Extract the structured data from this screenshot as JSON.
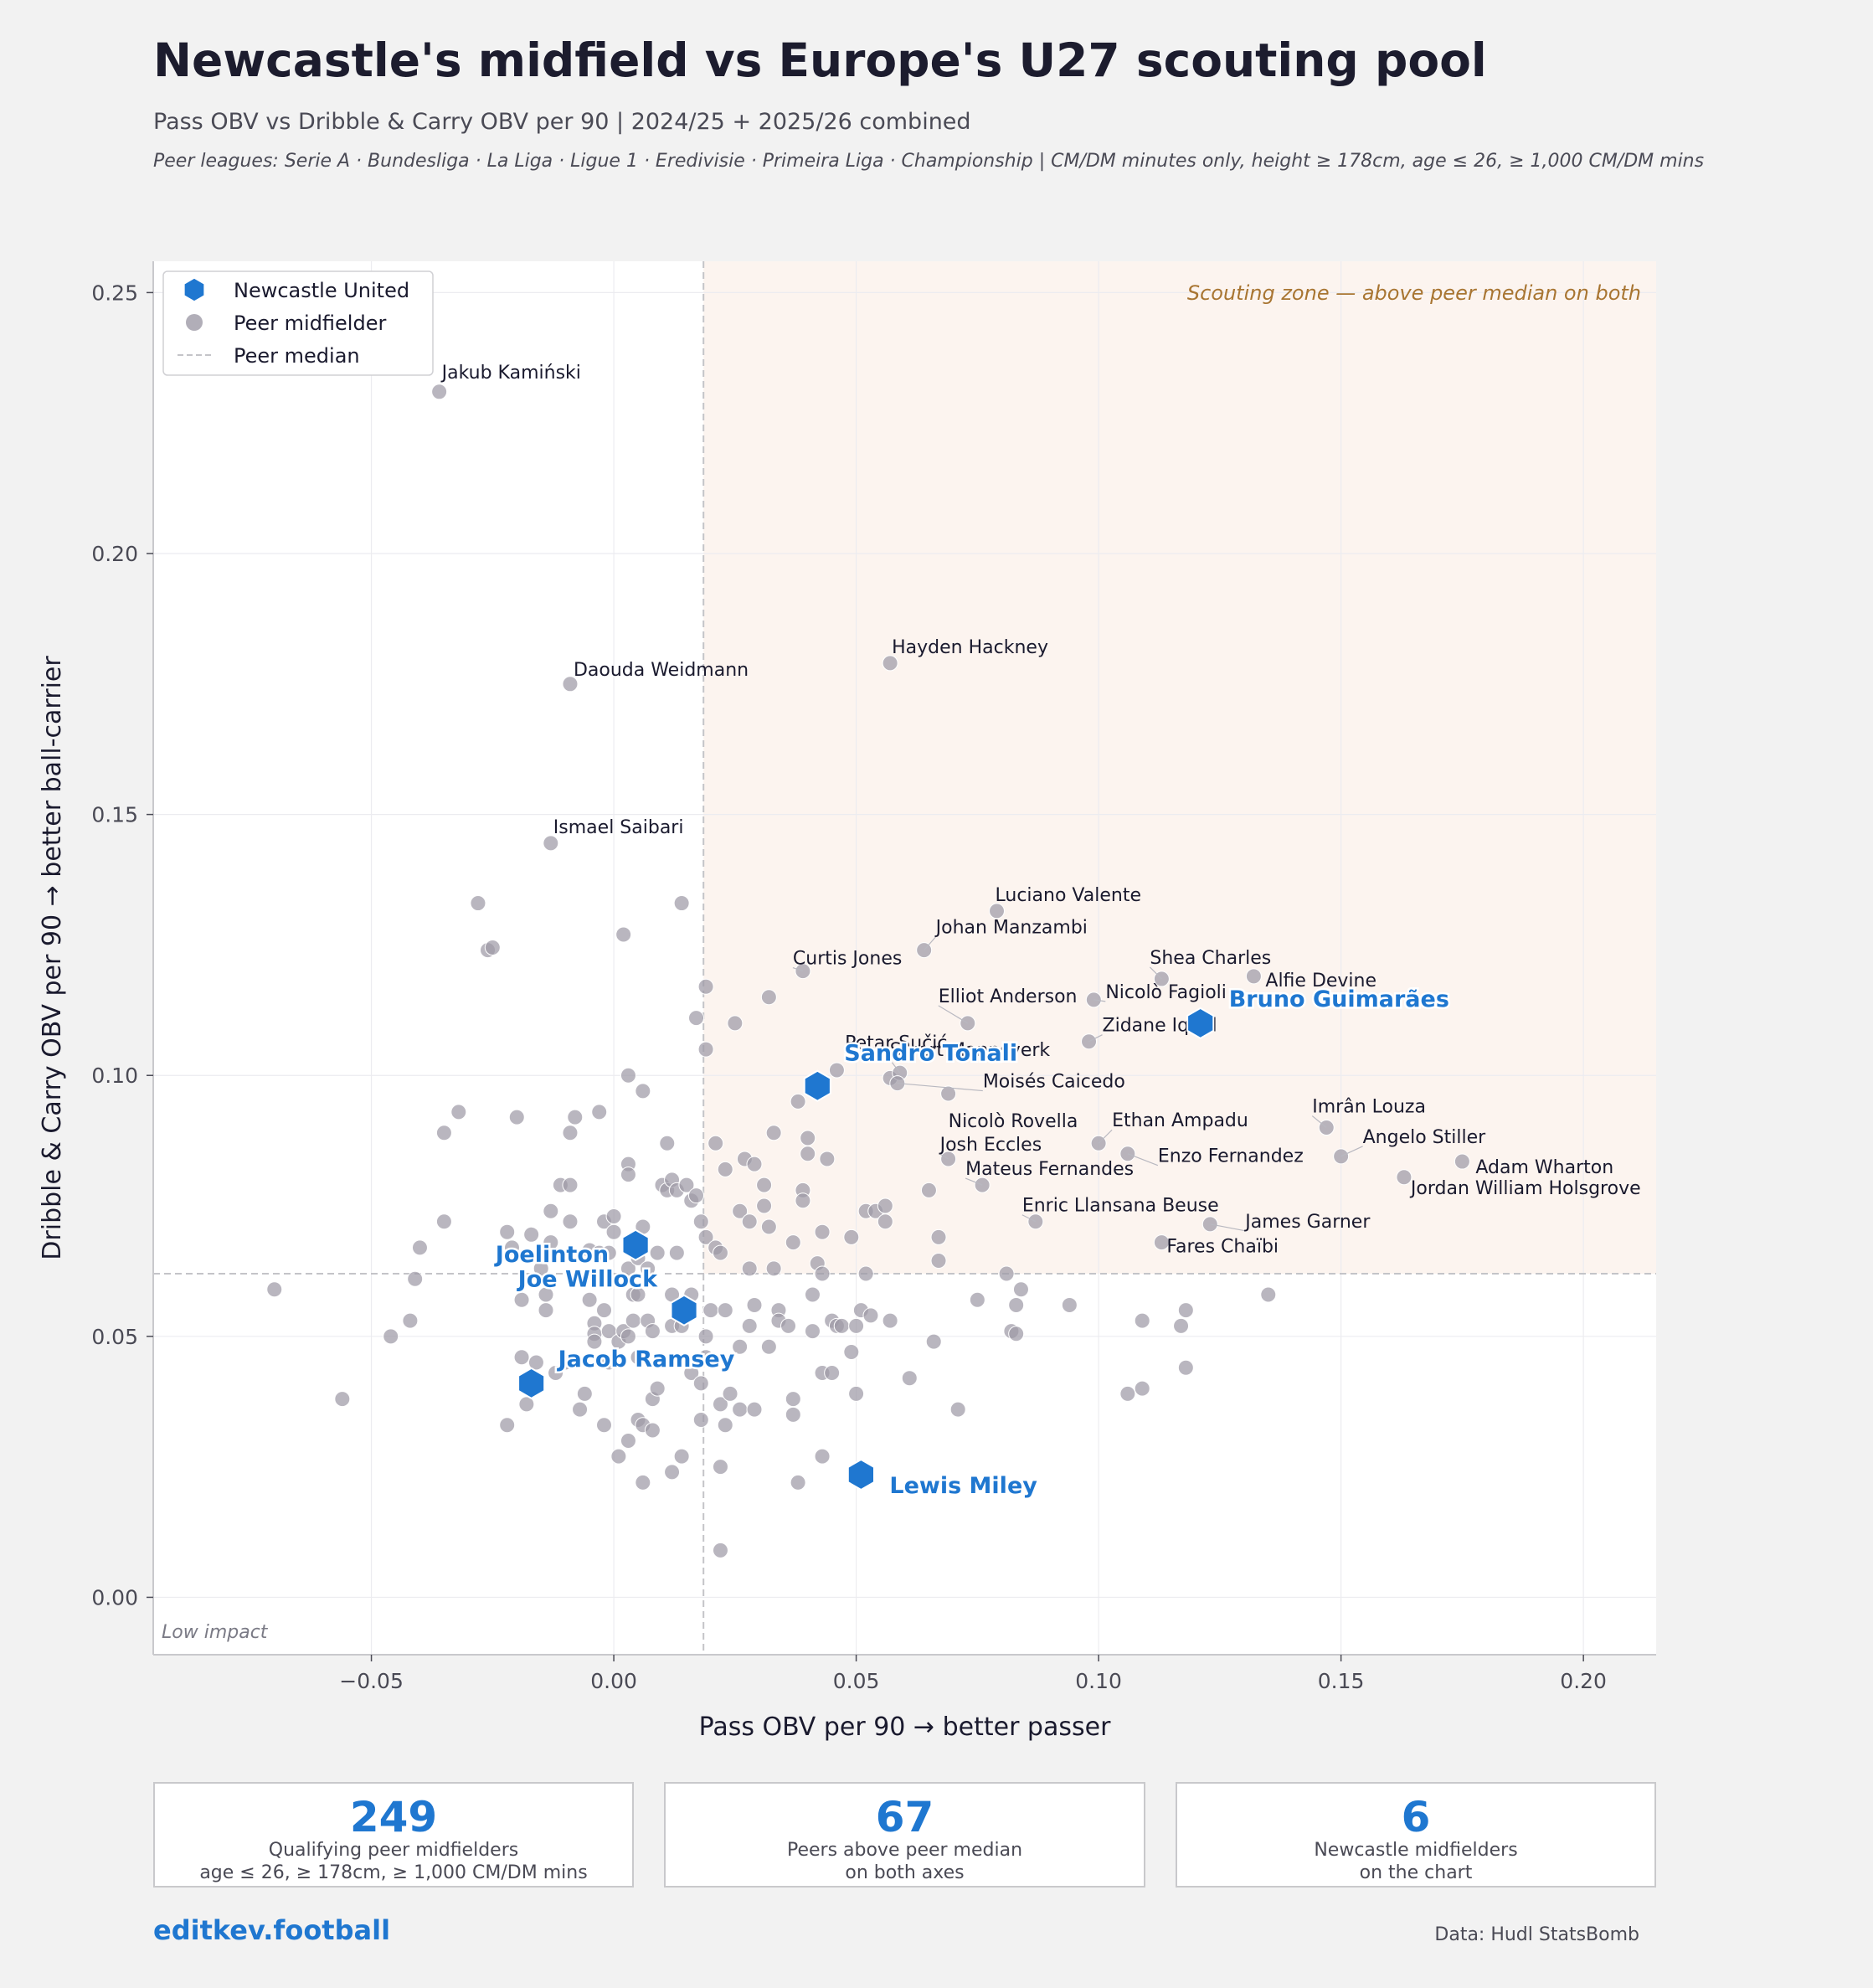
{
  "header": {
    "title": "Newcastle's midfield vs Europe's U27 scouting pool",
    "subtitle": "Pass OBV vs Dribble & Carry OBV per 90 | 2024/25 + 2025/26 combined",
    "note": "Peer leagues: Serie A · Bundesliga · La Liga · Ligue 1 · Eredivisie · Primeira Liga · Championship  |  CM/DM minutes only, height ≥ 178cm, age ≤ 26, ≥ 1,000 CM/DM mins"
  },
  "chart_data": {
    "type": "scatter",
    "xlabel": "Pass OBV per 90  →  better passer",
    "ylabel": "Dribble & Carry OBV per 90  →  better ball-carrier",
    "xlim": [
      -0.095,
      0.215
    ],
    "ylim": [
      -0.011,
      0.256
    ],
    "xticks": [
      -0.05,
      0.0,
      0.05,
      0.1,
      0.15,
      0.2
    ],
    "xtick_labels": [
      "−0.05",
      "0.00",
      "0.05",
      "0.10",
      "0.15",
      "0.20"
    ],
    "yticks": [
      0.0,
      0.05,
      0.1,
      0.15,
      0.2,
      0.25
    ],
    "ytick_labels": [
      "0.00",
      "0.05",
      "0.10",
      "0.15",
      "0.20",
      "0.25"
    ],
    "grid": true,
    "median": {
      "x": 0.0185,
      "y": 0.062
    },
    "legend_position": "top-left",
    "legend": [
      "Newcastle United",
      "Peer midfielder",
      "Peer median"
    ],
    "zone_label": "Scouting zone — above peer median on both",
    "corner_label": "Low impact",
    "colors": {
      "newcastle": "#1f77d0",
      "peer": "#9e9aa6",
      "zone": "#fcf4ef",
      "zone_text": "#a87532"
    },
    "newcastle": [
      {
        "name": "Bruno Guimarães",
        "x": 0.121,
        "y": 0.11
      },
      {
        "name": "Sandro Tonali",
        "x": 0.042,
        "y": 0.098
      },
      {
        "name": "Joelinton",
        "x": 0.0045,
        "y": 0.0675
      },
      {
        "name": "Joe Willock",
        "x": 0.0145,
        "y": 0.055
      },
      {
        "name": "Jacob Ramsey",
        "x": -0.017,
        "y": 0.041
      },
      {
        "name": "Lewis Miley",
        "x": 0.051,
        "y": 0.0235
      }
    ],
    "labeled_peers": [
      {
        "name": "Jakub Kamiński",
        "x": -0.036,
        "y": 0.231
      },
      {
        "name": "Daouda Weidmann",
        "x": -0.009,
        "y": 0.175
      },
      {
        "name": "Hayden Hackney",
        "x": 0.057,
        "y": 0.179
      },
      {
        "name": "Ismael Saibari",
        "x": -0.013,
        "y": 0.1445
      },
      {
        "name": "Luciano Valente",
        "x": 0.079,
        "y": 0.1315
      },
      {
        "name": "Johan Manzambi",
        "x": 0.064,
        "y": 0.124
      },
      {
        "name": "Curtis Jones",
        "x": 0.039,
        "y": 0.12
      },
      {
        "name": "Shea Charles",
        "x": 0.113,
        "y": 0.1185
      },
      {
        "name": "Alfie Devine",
        "x": 0.132,
        "y": 0.119
      },
      {
        "name": "Nicolò Fagioli",
        "x": 0.099,
        "y": 0.1145
      },
      {
        "name": "Elliot Anderson",
        "x": 0.073,
        "y": 0.11
      },
      {
        "name": "Zidane Iqbal",
        "x": 0.098,
        "y": 0.1065
      },
      {
        "name": "Petar Sučić",
        "x": 0.057,
        "y": 0.0995
      },
      {
        "name": "Sivert Mannsverk",
        "x": 0.059,
        "y": 0.1005
      },
      {
        "name": "Moisés Caicedo",
        "x": 0.0585,
        "y": 0.0985
      },
      {
        "name": "Nicolò Rovella",
        "x": 0.069,
        "y": 0.0965
      },
      {
        "name": "Imrân Louza",
        "x": 0.147,
        "y": 0.09
      },
      {
        "name": "Ethan Ampadu",
        "x": 0.1,
        "y": 0.087
      },
      {
        "name": "Angelo Stiller",
        "x": 0.15,
        "y": 0.0845
      },
      {
        "name": "Enzo Fernandez",
        "x": 0.106,
        "y": 0.085
      },
      {
        "name": "Adam Wharton",
        "x": 0.175,
        "y": 0.0835
      },
      {
        "name": "Josh Eccles",
        "x": 0.069,
        "y": 0.084
      },
      {
        "name": "Mateus Fernandes",
        "x": 0.076,
        "y": 0.079
      },
      {
        "name": "Jordan William Holsgrove",
        "x": 0.163,
        "y": 0.0805
      },
      {
        "name": "Enric Llansana Beuse",
        "x": 0.087,
        "y": 0.072
      },
      {
        "name": "James Garner",
        "x": 0.123,
        "y": 0.0715
      },
      {
        "name": "Fares Chaïbi",
        "x": 0.113,
        "y": 0.068
      }
    ],
    "peers": [
      [
        -0.07,
        0.059
      ],
      [
        -0.056,
        0.038
      ],
      [
        -0.046,
        0.05
      ],
      [
        -0.042,
        0.053
      ],
      [
        -0.041,
        0.061
      ],
      [
        -0.04,
        0.067
      ],
      [
        -0.035,
        0.089
      ],
      [
        -0.035,
        0.072
      ],
      [
        -0.032,
        0.093
      ],
      [
        -0.028,
        0.133
      ],
      [
        -0.026,
        0.124
      ],
      [
        -0.025,
        0.1245
      ],
      [
        -0.022,
        0.07
      ],
      [
        -0.022,
        0.033
      ],
      [
        -0.021,
        0.067
      ],
      [
        -0.02,
        0.092
      ],
      [
        -0.019,
        0.057
      ],
      [
        -0.019,
        0.046
      ],
      [
        -0.018,
        0.037
      ],
      [
        -0.017,
        0.0695
      ],
      [
        -0.016,
        0.045
      ],
      [
        -0.015,
        0.063
      ],
      [
        -0.014,
        0.058
      ],
      [
        -0.014,
        0.055
      ],
      [
        -0.013,
        0.068
      ],
      [
        -0.013,
        0.074
      ],
      [
        -0.012,
        0.043
      ],
      [
        -0.011,
        0.079
      ],
      [
        -0.01,
        0.045
      ],
      [
        -0.009,
        0.079
      ],
      [
        -0.009,
        0.089
      ],
      [
        -0.009,
        0.072
      ],
      [
        -0.008,
        0.092
      ],
      [
        -0.007,
        0.036
      ],
      [
        -0.006,
        0.039
      ],
      [
        -0.005,
        0.057
      ],
      [
        -0.005,
        0.0665
      ],
      [
        -0.004,
        0.0525
      ],
      [
        -0.004,
        0.0505
      ],
      [
        -0.004,
        0.049
      ],
      [
        -0.003,
        0.093
      ],
      [
        -0.003,
        0.066
      ],
      [
        -0.002,
        0.055
      ],
      [
        -0.002,
        0.072
      ],
      [
        -0.002,
        0.033
      ],
      [
        -0.001,
        0.051
      ],
      [
        -0.001,
        0.045
      ],
      [
        -0.001,
        0.066
      ],
      [
        0.0,
        0.073
      ],
      [
        0.0,
        0.07
      ],
      [
        0.001,
        0.027
      ],
      [
        0.001,
        0.049
      ],
      [
        0.002,
        0.051
      ],
      [
        0.002,
        0.127
      ],
      [
        0.003,
        0.1
      ],
      [
        0.003,
        0.083
      ],
      [
        0.003,
        0.081
      ],
      [
        0.003,
        0.03
      ],
      [
        0.003,
        0.063
      ],
      [
        0.003,
        0.05
      ],
      [
        0.004,
        0.053
      ],
      [
        0.004,
        0.058
      ],
      [
        0.005,
        0.034
      ],
      [
        0.005,
        0.058
      ],
      [
        0.005,
        0.065
      ],
      [
        0.005,
        0.046
      ],
      [
        0.006,
        0.097
      ],
      [
        0.006,
        0.071
      ],
      [
        0.006,
        0.022
      ],
      [
        0.006,
        0.033
      ],
      [
        0.007,
        0.053
      ],
      [
        0.007,
        0.063
      ],
      [
        0.008,
        0.032
      ],
      [
        0.008,
        0.038
      ],
      [
        0.008,
        0.051
      ],
      [
        0.009,
        0.066
      ],
      [
        0.009,
        0.04
      ],
      [
        0.01,
        0.079
      ],
      [
        0.011,
        0.087
      ],
      [
        0.011,
        0.078
      ],
      [
        0.012,
        0.058
      ],
      [
        0.012,
        0.052
      ],
      [
        0.012,
        0.024
      ],
      [
        0.012,
        0.08
      ],
      [
        0.013,
        0.066
      ],
      [
        0.013,
        0.078
      ],
      [
        0.014,
        0.133
      ],
      [
        0.014,
        0.052
      ],
      [
        0.014,
        0.027
      ],
      [
        0.015,
        0.079
      ],
      [
        0.016,
        0.076
      ],
      [
        0.016,
        0.058
      ],
      [
        0.016,
        0.043
      ],
      [
        0.017,
        0.077
      ],
      [
        0.017,
        0.111
      ],
      [
        0.018,
        0.072
      ],
      [
        0.018,
        0.041
      ],
      [
        0.018,
        0.034
      ],
      [
        0.019,
        0.117
      ],
      [
        0.019,
        0.105
      ],
      [
        0.019,
        0.05
      ],
      [
        0.019,
        0.069
      ],
      [
        0.019,
        0.046
      ],
      [
        0.02,
        0.055
      ],
      [
        0.021,
        0.067
      ],
      [
        0.021,
        0.087
      ],
      [
        0.022,
        0.066
      ],
      [
        0.022,
        0.009
      ],
      [
        0.022,
        0.025
      ],
      [
        0.022,
        0.037
      ],
      [
        0.023,
        0.055
      ],
      [
        0.023,
        0.082
      ],
      [
        0.023,
        0.033
      ],
      [
        0.024,
        0.039
      ],
      [
        0.025,
        0.11
      ],
      [
        0.026,
        0.036
      ],
      [
        0.026,
        0.074
      ],
      [
        0.026,
        0.048
      ],
      [
        0.027,
        0.084
      ],
      [
        0.028,
        0.063
      ],
      [
        0.028,
        0.052
      ],
      [
        0.028,
        0.072
      ],
      [
        0.029,
        0.083
      ],
      [
        0.029,
        0.056
      ],
      [
        0.029,
        0.036
      ],
      [
        0.031,
        0.075
      ],
      [
        0.031,
        0.079
      ],
      [
        0.032,
        0.071
      ],
      [
        0.032,
        0.048
      ],
      [
        0.032,
        0.115
      ],
      [
        0.033,
        0.089
      ],
      [
        0.033,
        0.063
      ],
      [
        0.034,
        0.055
      ],
      [
        0.034,
        0.053
      ],
      [
        0.036,
        0.052
      ],
      [
        0.037,
        0.035
      ],
      [
        0.037,
        0.038
      ],
      [
        0.037,
        0.068
      ],
      [
        0.038,
        0.095
      ],
      [
        0.038,
        0.022
      ],
      [
        0.039,
        0.078
      ],
      [
        0.039,
        0.076
      ],
      [
        0.04,
        0.085
      ],
      [
        0.04,
        0.088
      ],
      [
        0.041,
        0.058
      ],
      [
        0.041,
        0.051
      ],
      [
        0.042,
        0.064
      ],
      [
        0.043,
        0.062
      ],
      [
        0.043,
        0.043
      ],
      [
        0.043,
        0.07
      ],
      [
        0.043,
        0.027
      ],
      [
        0.044,
        0.084
      ],
      [
        0.045,
        0.053
      ],
      [
        0.045,
        0.043
      ],
      [
        0.046,
        0.052
      ],
      [
        0.046,
        0.101
      ],
      [
        0.047,
        0.052
      ],
      [
        0.049,
        0.069
      ],
      [
        0.049,
        0.047
      ],
      [
        0.05,
        0.039
      ],
      [
        0.05,
        0.052
      ],
      [
        0.051,
        0.055
      ],
      [
        0.052,
        0.074
      ],
      [
        0.052,
        0.062
      ],
      [
        0.053,
        0.054
      ],
      [
        0.054,
        0.074
      ],
      [
        0.056,
        0.075
      ],
      [
        0.056,
        0.072
      ],
      [
        0.057,
        0.053
      ],
      [
        0.061,
        0.042
      ],
      [
        0.065,
        0.078
      ],
      [
        0.066,
        0.049
      ],
      [
        0.067,
        0.0645
      ],
      [
        0.067,
        0.069
      ],
      [
        0.071,
        0.036
      ],
      [
        0.075,
        0.057
      ],
      [
        0.081,
        0.062
      ],
      [
        0.082,
        0.051
      ],
      [
        0.083,
        0.056
      ],
      [
        0.084,
        0.059
      ],
      [
        0.083,
        0.0505
      ],
      [
        0.094,
        0.056
      ],
      [
        0.106,
        0.039
      ],
      [
        0.109,
        0.04
      ],
      [
        0.109,
        0.053
      ],
      [
        0.117,
        0.052
      ],
      [
        0.118,
        0.055
      ],
      [
        0.118,
        0.044
      ],
      [
        0.135,
        0.058
      ]
    ]
  },
  "stats": [
    {
      "value": "249",
      "label": "Qualifying peer midfielders\nage ≤ 26, ≥ 178cm, ≥ 1,000 CM/DM mins"
    },
    {
      "value": "67",
      "label": "Peers above peer median\non both axes"
    },
    {
      "value": "6",
      "label": "Newcastle midfielders\non the chart"
    }
  ],
  "footer": {
    "brand": "editkev.football",
    "source": "Data: Hudl StatsBomb"
  }
}
